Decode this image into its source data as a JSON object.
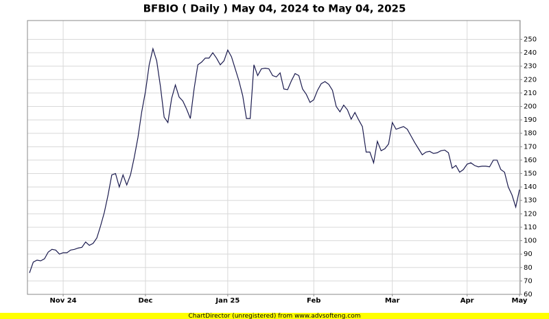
{
  "chart_data": {
    "type": "line",
    "title": "BFBIO ( Daily ) May 04, 2024 to May 04, 2025",
    "footer": "ChartDirector (unregistered) from www.advsofteng.com",
    "categories": [
      null,
      null,
      null,
      null,
      null,
      null,
      null,
      null,
      null,
      "Nov 24",
      null,
      null,
      null,
      null,
      null,
      null,
      null,
      null,
      null,
      null,
      null,
      null,
      null,
      null,
      null,
      null,
      null,
      null,
      null,
      null,
      null,
      "Dec",
      null,
      null,
      null,
      null,
      null,
      null,
      null,
      null,
      null,
      null,
      null,
      null,
      null,
      null,
      null,
      null,
      null,
      null,
      null,
      null,
      null,
      "Jan 25",
      null,
      null,
      null,
      null,
      null,
      null,
      null,
      null,
      null,
      null,
      null,
      null,
      null,
      null,
      null,
      null,
      null,
      null,
      null,
      null,
      null,
      null,
      "Feb",
      null,
      null,
      null,
      null,
      null,
      null,
      null,
      null,
      null,
      null,
      null,
      null,
      null,
      null,
      null,
      null,
      null,
      null,
      null,
      null,
      "Mar",
      null,
      null,
      null,
      null,
      null,
      null,
      null,
      null,
      null,
      null,
      null,
      null,
      null,
      null,
      null,
      null,
      null,
      null,
      null,
      "Apr",
      null,
      null,
      null,
      null,
      null,
      null,
      null,
      null,
      null,
      null,
      null,
      null,
      null,
      "May"
    ],
    "values": [
      76,
      84,
      85.5,
      85,
      86.5,
      91.5,
      93.5,
      93,
      90,
      91,
      91,
      93,
      93.5,
      94.5,
      95,
      99,
      96.5,
      98,
      102,
      111,
      121,
      134,
      149,
      150,
      140,
      149,
      141.5,
      149,
      162,
      177,
      196,
      211,
      231,
      243,
      234,
      215,
      192,
      188,
      206,
      216,
      207,
      204,
      198,
      191,
      213,
      231,
      233,
      236,
      236,
      240,
      236,
      231,
      234,
      242,
      237,
      228,
      219,
      208,
      191,
      191,
      231,
      223,
      228,
      228.5,
      228,
      223,
      222,
      225,
      213,
      212.5,
      219,
      224.5,
      223,
      213,
      209,
      203,
      205,
      212,
      217,
      218.5,
      216.5,
      212,
      200,
      196,
      201,
      197.5,
      190.5,
      195.5,
      190,
      185,
      166,
      166,
      158,
      174,
      167,
      168.5,
      172,
      188,
      183,
      184,
      185,
      183,
      178,
      173,
      168.5,
      164,
      166,
      166.5,
      165,
      165.5,
      167,
      167.5,
      165.5,
      154,
      156,
      151,
      153,
      157,
      158,
      156,
      155,
      155.5,
      155.5,
      155,
      160,
      160,
      153,
      151,
      140,
      134,
      125,
      138
    ],
    "color": "#1a1a4e",
    "ylim": [
      60,
      264
    ],
    "yticks": [
      60,
      70,
      80,
      90,
      100,
      110,
      120,
      130,
      140,
      150,
      160,
      170,
      180,
      190,
      200,
      210,
      220,
      230,
      240,
      250
    ],
    "grid": true
  }
}
